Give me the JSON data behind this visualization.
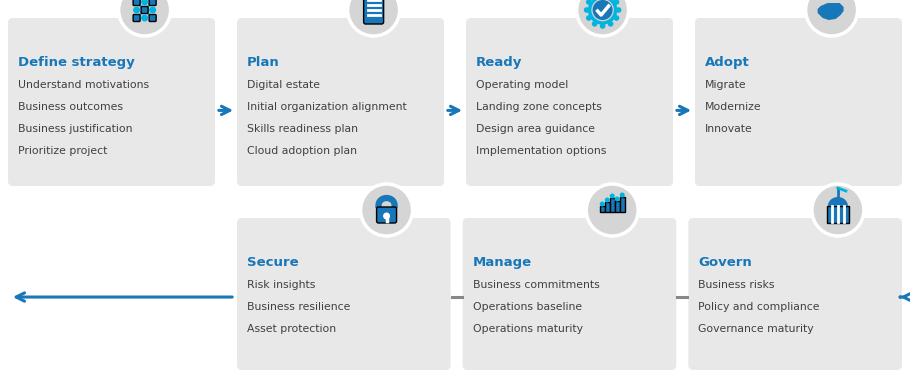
{
  "bg": "#ffffff",
  "box_bg": "#e8e8e8",
  "circle_bg": "#d5d5d5",
  "title_blue": "#1777b8",
  "text_dark": "#404040",
  "arrow_blue": "#1777b8",
  "line_dark": "#888888",
  "icon_blue": "#1777b8",
  "icon_cyan": "#00b4e0",
  "top_row": [
    {
      "title": "Define strategy",
      "items": [
        "Understand motivations",
        "Business outcomes",
        "Business justification",
        "Prioritize project"
      ],
      "icon": "strategy"
    },
    {
      "title": "Plan",
      "items": [
        "Digital estate",
        "Initial organization alignment",
        "Skills readiness plan",
        "Cloud adoption plan"
      ],
      "icon": "plan"
    },
    {
      "title": "Ready",
      "items": [
        "Operating model",
        "Landing zone concepts",
        "Design area guidance",
        "Implementation options"
      ],
      "icon": "ready"
    },
    {
      "title": "Adopt",
      "items": [
        "Migrate",
        "Modernize",
        "Innovate"
      ],
      "icon": "adopt"
    }
  ],
  "bottom_row": [
    {
      "title": "Secure",
      "items": [
        "Risk insights",
        "Business resilience",
        "Asset protection"
      ],
      "icon": "secure"
    },
    {
      "title": "Manage",
      "items": [
        "Business commitments",
        "Operations baseline",
        "Operations maturity"
      ],
      "icon": "manage"
    },
    {
      "title": "Govern",
      "items": [
        "Business risks",
        "Policy and compliance",
        "Governance maturity"
      ],
      "icon": "govern"
    }
  ],
  "fig_w": 9.1,
  "fig_h": 3.86,
  "dpi": 100
}
